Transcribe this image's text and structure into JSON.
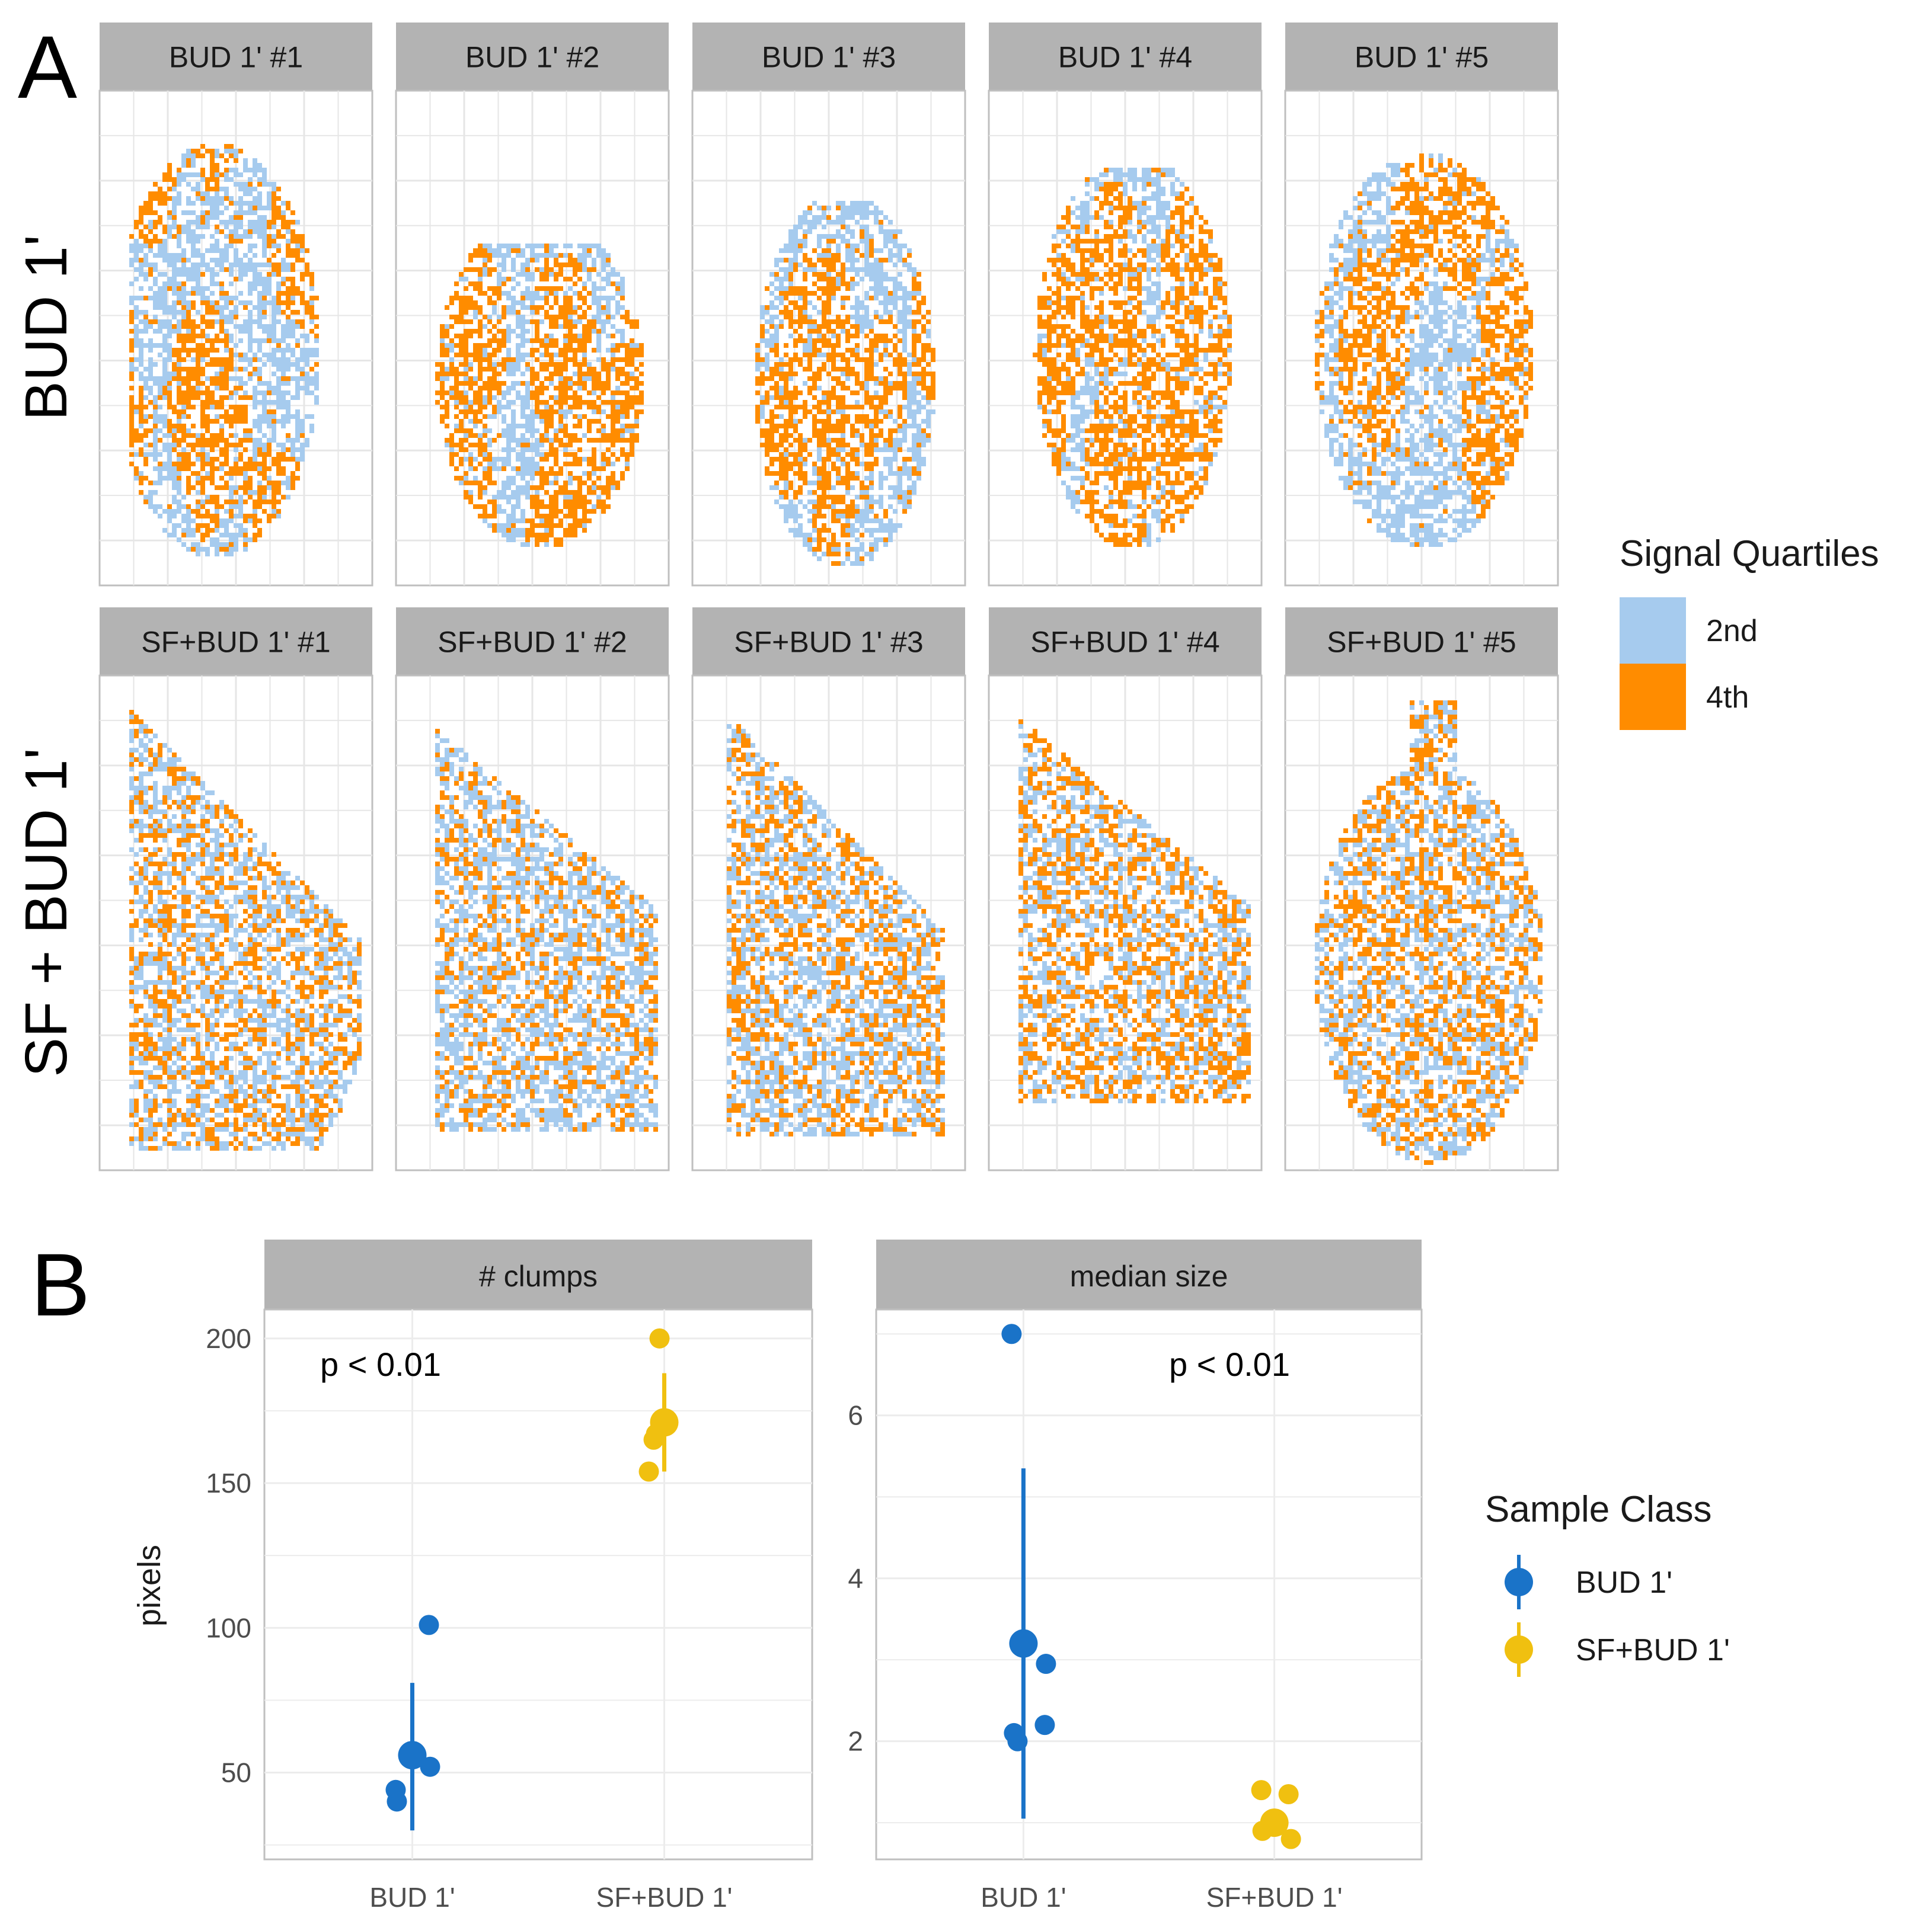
{
  "figure": {
    "panel_a_letter": "A",
    "panel_b_letter": "B",
    "row_labels": [
      "BUD 1'",
      "SF + BUD 1'"
    ]
  },
  "colors": {
    "quartile_2nd": "#a6cbee",
    "quartile_4th": "#ff8c00",
    "bud": "#1a73c8",
    "sfbud": "#f0c010",
    "strip_bg": "#b3b3b3",
    "grid": "#e6e6e6",
    "panel_border": "#bfbfbf"
  },
  "chart_data": [
    {
      "type": "heatmap",
      "description_scope": "panel A — spatial signal quartile maps",
      "facets": [
        {
          "label": "BUD 1' #1",
          "row": "BUD 1'"
        },
        {
          "label": "BUD 1' #2",
          "row": "BUD 1'"
        },
        {
          "label": "BUD 1' #3",
          "row": "BUD 1'"
        },
        {
          "label": "BUD 1' #4",
          "row": "BUD 1'"
        },
        {
          "label": "BUD 1' #5",
          "row": "BUD 1'"
        },
        {
          "label": "SF+BUD 1' #1",
          "row": "SF + BUD 1'"
        },
        {
          "label": "SF+BUD 1' #2",
          "row": "SF + BUD 1'"
        },
        {
          "label": "SF+BUD 1' #3",
          "row": "SF + BUD 1'"
        },
        {
          "label": "SF+BUD 1' #4",
          "row": "SF + BUD 1'"
        },
        {
          "label": "SF+BUD 1' #5",
          "row": "SF + BUD 1'"
        }
      ],
      "legend": {
        "title": "Signal Quartiles",
        "entries": [
          {
            "label": "2nd",
            "color": "#a6cbee"
          },
          {
            "label": "4th",
            "color": "#ff8c00"
          }
        ]
      },
      "grid": true,
      "legend_placement": "right"
    },
    {
      "type": "scatter",
      "facet": "# clumps",
      "ylabel": "pixels",
      "xlabel": "",
      "categories": [
        "BUD 1'",
        "SF+BUD 1'"
      ],
      "ylim": [
        20,
        210
      ],
      "yticks": [
        50,
        100,
        150,
        200
      ],
      "annotation": "p < 0.01",
      "series": [
        {
          "name": "BUD 1'",
          "points": [
            44,
            40,
            56,
            52,
            101
          ],
          "mean": 56,
          "range": [
            30,
            81
          ]
        },
        {
          "name": "SF+BUD 1'",
          "points": [
            154,
            165,
            167,
            171,
            200
          ],
          "mean": 171,
          "range": [
            154,
            188
          ]
        }
      ]
    },
    {
      "type": "scatter",
      "facet": "median size",
      "ylabel": "pixels",
      "xlabel": "",
      "categories": [
        "BUD 1'",
        "SF+BUD 1'"
      ],
      "ylim": [
        0.55,
        7.3
      ],
      "yticks": [
        2,
        4,
        6
      ],
      "annotation": "p < 0.01",
      "series": [
        {
          "name": "BUD 1'",
          "points": [
            7.0,
            2.0,
            2.1,
            2.2,
            2.95
          ],
          "mean": 3.2,
          "range": [
            1.05,
            5.35
          ]
        },
        {
          "name": "SF+BUD 1'",
          "points": [
            1.4,
            1.35,
            1.0,
            0.9,
            0.8
          ],
          "mean": 1.0,
          "range": [
            0.85,
            1.15
          ]
        }
      ],
      "legend": {
        "title": "Sample Class",
        "entries": [
          {
            "label": "BUD 1'",
            "color": "#1a73c8"
          },
          {
            "label": "SF+BUD 1'",
            "color": "#f0c010"
          }
        ]
      }
    }
  ]
}
